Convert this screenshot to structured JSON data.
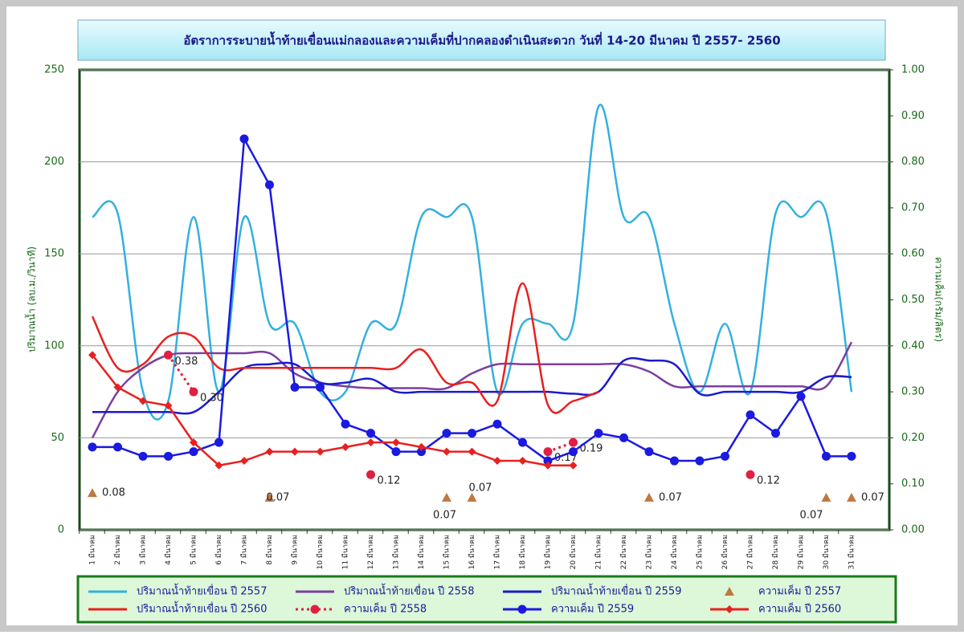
{
  "chart_data": {
    "type": "line",
    "title": "อัตราการระบายน้ำท้ายเขื่อนแม่กลองและความเค็มที่ปากคลองดำเนินสะดวก  วันที่  14-20 มีนาคม ปี 2557- 2560",
    "y_label": "ปริมาณน้ำ (ลบ.ม./วินาที)",
    "y2_label": "ความเค็ม(กรัม/ลิตร)",
    "categories": [
      "1 มีนาคม",
      "2 มีนาคม",
      "3 มีนาคม",
      "4 มีนาคม",
      "5 มีนาคม",
      "6 มีนาคม",
      "7 มีนาคม",
      "8 มีนาคม",
      "9 มีนาคม",
      "10 มีนาคม",
      "11 มีนาคม",
      "12 มีนาคม",
      "13 มีนาคม",
      "14 มีนาคม",
      "15 มีนาคม",
      "16 มีนาคม",
      "17 มีนาคม",
      "18 มีนาคม",
      "19 มีนาคม",
      "20 มีนาคม",
      "21 มีนาคม",
      "22 มีนาคม",
      "23 มีนาคม",
      "24 มีนาคม",
      "25 มีนาคม",
      "26 มีนาคม",
      "27 มีนาคม",
      "28 มีนาคม",
      "29 มีนาคม",
      "30 มีนาคม",
      "31 มีนาคม"
    ],
    "ylim": [
      0,
      250
    ],
    "yticks": [
      0,
      50,
      100,
      150,
      200,
      250
    ],
    "y2lim": [
      0,
      1
    ],
    "y2ticks": [
      {
        "value": 0,
        "label": "0.00"
      },
      {
        "value": 0.1,
        "label": "0.10"
      },
      {
        "value": 0.2,
        "label": "0.20"
      },
      {
        "value": 0.3,
        "label": "0.30"
      },
      {
        "value": 0.4,
        "label": "0.40"
      },
      {
        "value": 0.5,
        "label": "0.50"
      },
      {
        "value": 0.6,
        "label": "0.60"
      },
      {
        "value": 0.7,
        "label": "0.70"
      },
      {
        "value": 0.8,
        "label": "0.80"
      },
      {
        "value": 0.9,
        "label": "0.90"
      },
      {
        "value": 1,
        "label": "1.00"
      }
    ],
    "grid": true,
    "series": [
      {
        "name": "ปริมาณน้ำท้ายเขื่อน ปี 2557",
        "color": "#33b0e0",
        "smooth": true,
        "values": [
          170,
          172,
          75,
          70,
          170,
          75,
          170,
          112,
          112,
          75,
          75,
          112,
          112,
          170,
          170,
          170,
          75,
          112,
          112,
          112,
          230,
          170,
          170,
          112,
          75,
          112,
          75,
          172,
          170,
          172,
          75
        ]
      },
      {
        "name": "ปริมาณน้ำท้ายเขื่อน ปี 2558",
        "color": "#7b3fa0",
        "smooth": true,
        "values": [
          50,
          75,
          88,
          95,
          96,
          96,
          96,
          96,
          85,
          80,
          78,
          77,
          77,
          77,
          77,
          85,
          90,
          90,
          90,
          90,
          90,
          90,
          86,
          78,
          78,
          78,
          78,
          78,
          78,
          78,
          102
        ]
      },
      {
        "name": "ปริมาณน้ำท้ายเขื่อน ปี 2559",
        "color": "#1a1acc",
        "smooth": true,
        "values": [
          64,
          64,
          64,
          64,
          64,
          75,
          88,
          90,
          90,
          80,
          80,
          82,
          75,
          75,
          75,
          75,
          75,
          75,
          75,
          74,
          75,
          92,
          92,
          90,
          74,
          75,
          75,
          75,
          75,
          83,
          83
        ]
      },
      {
        "name": "ความเค็ม ปี 2557",
        "color": "#c07840",
        "axis": "y2",
        "marker": "triangle",
        "noline": true,
        "values": [
          0.08,
          null,
          null,
          null,
          null,
          null,
          null,
          0.07,
          null,
          null,
          null,
          null,
          null,
          null,
          0.07,
          0.07,
          null,
          null,
          null,
          null,
          null,
          null,
          0.07,
          null,
          null,
          null,
          null,
          null,
          null,
          0.07,
          0.07
        ]
      },
      {
        "name": "ปริมาณน้ำท้ายเขื่อน ปี 2560",
        "color": "#e82020",
        "smooth": true,
        "values": [
          116,
          88,
          90,
          105,
          105,
          88,
          88,
          88,
          88,
          88,
          88,
          88,
          88,
          98,
          80,
          80,
          70,
          134,
          68,
          70,
          75,
          null,
          null,
          null,
          null,
          null,
          null,
          null,
          null,
          null,
          null
        ]
      },
      {
        "name": "ความเค็ม ปี 2558",
        "color": "#e02040",
        "axis": "y2",
        "marker": "circle",
        "dash": true,
        "values": [
          null,
          null,
          null,
          0.38,
          0.3,
          null,
          null,
          null,
          null,
          null,
          null,
          0.12,
          null,
          null,
          null,
          null,
          null,
          null,
          0.17,
          0.19,
          null,
          null,
          null,
          null,
          null,
          null,
          0.12,
          null,
          null,
          null,
          null
        ],
        "value_labels": [
          null,
          null,
          null,
          "0.38",
          "0.30",
          null,
          null,
          null,
          null,
          null,
          null,
          "0.12",
          null,
          null,
          null,
          null,
          null,
          null,
          "0.17",
          "0.19",
          null,
          null,
          null,
          null,
          null,
          null,
          "0.12",
          null,
          null,
          null,
          null
        ]
      },
      {
        "name": "ความเค็ม ปี 2559",
        "color": "#1a1ae0",
        "axis": "y2",
        "marker": "circle",
        "values": [
          0.18,
          0.18,
          0.16,
          0.16,
          0.17,
          0.19,
          0.85,
          0.75,
          0.31,
          0.31,
          0.23,
          0.21,
          0.17,
          0.17,
          0.21,
          0.21,
          0.23,
          0.19,
          0.15,
          0.17,
          0.21,
          0.2,
          0.17,
          0.15,
          0.15,
          0.16,
          0.25,
          0.21,
          0.29,
          0.16,
          0.16
        ]
      },
      {
        "name": "ความเค็ม ปี 2560",
        "color": "#e82020",
        "axis": "y2",
        "marker": "diamond",
        "values": [
          0.38,
          0.31,
          0.28,
          0.27,
          0.19,
          0.14,
          0.15,
          0.17,
          0.17,
          0.17,
          0.18,
          0.19,
          0.19,
          0.18,
          0.17,
          0.17,
          0.15,
          0.15,
          0.14,
          0.14,
          null,
          null,
          null,
          null,
          null,
          null,
          null,
          null,
          null,
          null,
          null
        ]
      }
    ]
  }
}
